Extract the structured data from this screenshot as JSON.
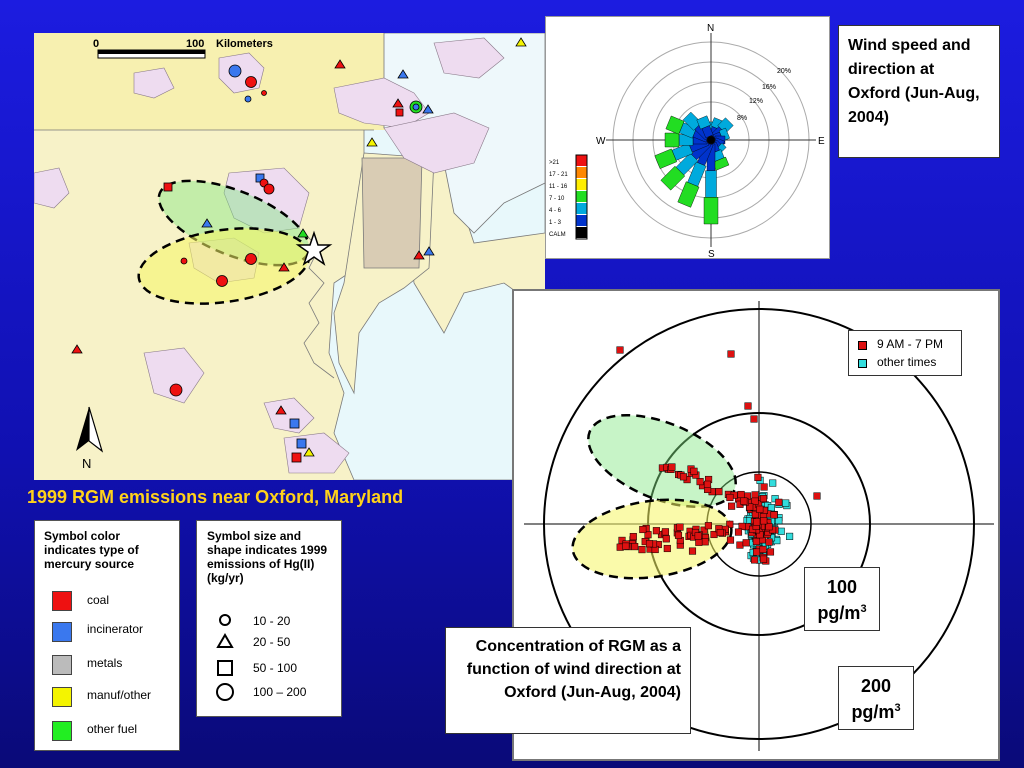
{
  "map": {
    "scale_zero": "0",
    "scale_max": "100",
    "scale_unit": "Kilometers",
    "north_label": "N",
    "caption": "1999 RGM emissions near Oxford, Maryland",
    "colors": {
      "coal": "#ee2020",
      "incinerator": "#3b6fe6",
      "metals": "#b8b8b8",
      "manuf_other": "#f2f200",
      "other_fuel": "#22dd22",
      "land": "#f7f2c8",
      "water": "#e8f8fb",
      "urban": "#eedcf0"
    }
  },
  "legend_type": {
    "title": "Symbol color indicates type of mercury source",
    "items": [
      {
        "label": "coal",
        "color": "#ee1111"
      },
      {
        "label": "incinerator",
        "color": "#3a78ee"
      },
      {
        "label": "metals",
        "color": "#bbbbbb"
      },
      {
        "label": "manuf/other",
        "color": "#f4f400"
      },
      {
        "label": "other fuel",
        "color": "#22ee22"
      }
    ]
  },
  "legend_size": {
    "title": "Symbol size and shape indicates 1999 emissions of Hg(II)  (kg/yr)",
    "items": [
      {
        "label": "10 - 20",
        "shape": "circle-small"
      },
      {
        "label": "20 - 50",
        "shape": "triangle"
      },
      {
        "label": "50 - 100",
        "shape": "square"
      },
      {
        "label": "100 – 200",
        "shape": "circle-large"
      }
    ]
  },
  "wind_rose": {
    "title": "Wind speed and direction at Oxford (Jun-Aug, 2004)",
    "compass": [
      "N",
      "E",
      "S",
      "W"
    ],
    "ring_labels": [
      "8%",
      "12%",
      "16%",
      "20%"
    ],
    "speed_bins": [
      "CALM",
      "1 - 3",
      "4 - 6",
      "7 - 10",
      "11 - 16",
      "17 - 21",
      ">21"
    ],
    "bin_colors": [
      "#000000",
      "#0033cc",
      "#00aadd",
      "#22dd22",
      "#ffee00",
      "#ff8800",
      "#ee1111"
    ]
  },
  "chart_data": {
    "type": "scatter",
    "title": "Concentration of RGM as a function of wind direction at Oxford (Jun-Aug, 2004)",
    "ring_labels": [
      {
        "value": "100",
        "unit": "pg/m",
        "sup": "3"
      },
      {
        "value": "200",
        "unit": "pg/m",
        "sup": "3"
      }
    ],
    "legend": "top-right",
    "series": [
      {
        "name": "9 AM - 7 PM",
        "color": "#dd1111",
        "shape": "square"
      },
      {
        "name": "other times",
        "color": "#33dddd",
        "shape": "square"
      }
    ]
  }
}
